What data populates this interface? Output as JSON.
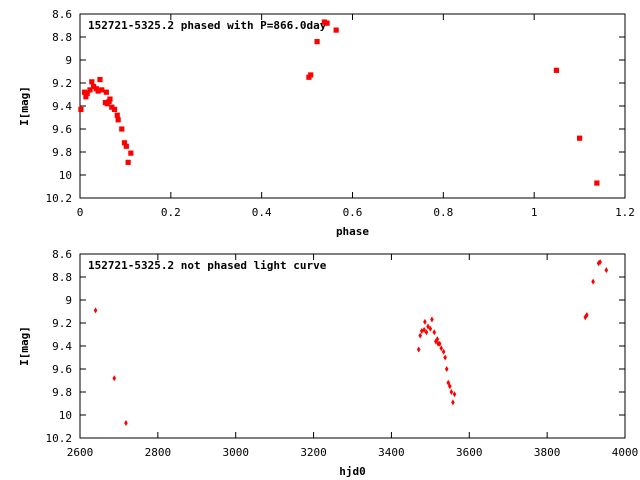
{
  "chart_data": [
    {
      "type": "scatter",
      "title": "152721-5325.2 phased with P=866.0day",
      "xlabel": "phase",
      "ylabel": "I[mag]",
      "xlim": [
        0,
        1.2
      ],
      "ylim": [
        10.2,
        8.6
      ],
      "y_inverted": true,
      "xticks": [
        "0",
        "0.2",
        "0.4",
        "0.6",
        "0.8",
        "1",
        "1.2"
      ],
      "yticks": [
        "8.6",
        "8.8",
        "9",
        "9.2",
        "9.4",
        "9.6",
        "9.8",
        "10",
        "10.2"
      ],
      "marker_color": "#ff0000",
      "x": [
        0.002,
        0.01,
        0.013,
        0.016,
        0.022,
        0.026,
        0.03,
        0.036,
        0.04,
        0.044,
        0.048,
        0.056,
        0.058,
        0.06,
        0.064,
        0.066,
        0.07,
        0.076,
        0.082,
        0.084,
        0.092,
        0.098,
        0.102,
        0.106,
        0.112,
        0.504,
        0.508,
        0.522,
        0.538,
        0.544,
        0.564,
        1.049,
        1.1,
        1.138
      ],
      "y": [
        9.43,
        9.28,
        9.32,
        9.29,
        9.26,
        9.19,
        9.23,
        9.25,
        9.27,
        9.17,
        9.26,
        9.37,
        9.28,
        9.38,
        9.36,
        9.34,
        9.41,
        9.43,
        9.48,
        9.52,
        9.6,
        9.72,
        9.75,
        9.89,
        9.81,
        9.15,
        9.13,
        8.84,
        8.67,
        8.68,
        8.74,
        9.09,
        9.68,
        10.07
      ]
    },
    {
      "type": "scatter",
      "title": "152721-5325.2 not phased light curve",
      "xlabel": "hjd0",
      "ylabel": "I[mag]",
      "xlim": [
        2600,
        4000
      ],
      "ylim": [
        10.2,
        8.6
      ],
      "y_inverted": true,
      "xticks": [
        "2600",
        "2800",
        "3000",
        "3200",
        "3400",
        "3600",
        "3800",
        "4000"
      ],
      "yticks": [
        "8.6",
        "8.8",
        "9",
        "9.2",
        "9.4",
        "9.6",
        "9.8",
        "10",
        "10.2"
      ],
      "marker_color": "#ff0000",
      "x": [
        2640,
        2688,
        2718,
        3470,
        3474,
        3478,
        3484,
        3486,
        3490,
        3494,
        3500,
        3504,
        3510,
        3514,
        3518,
        3520,
        3524,
        3528,
        3534,
        3538,
        3542,
        3546,
        3550,
        3554,
        3558,
        3562,
        3898,
        3902,
        3918,
        3932,
        3936,
        3952
      ],
      "y": [
        9.09,
        9.68,
        10.07,
        9.43,
        9.31,
        9.27,
        9.26,
        9.19,
        9.28,
        9.23,
        9.25,
        9.17,
        9.28,
        9.36,
        9.34,
        9.38,
        9.38,
        9.42,
        9.45,
        9.5,
        9.6,
        9.72,
        9.75,
        9.8,
        9.89,
        9.82,
        9.15,
        9.13,
        8.84,
        8.68,
        8.67,
        8.74
      ]
    }
  ]
}
